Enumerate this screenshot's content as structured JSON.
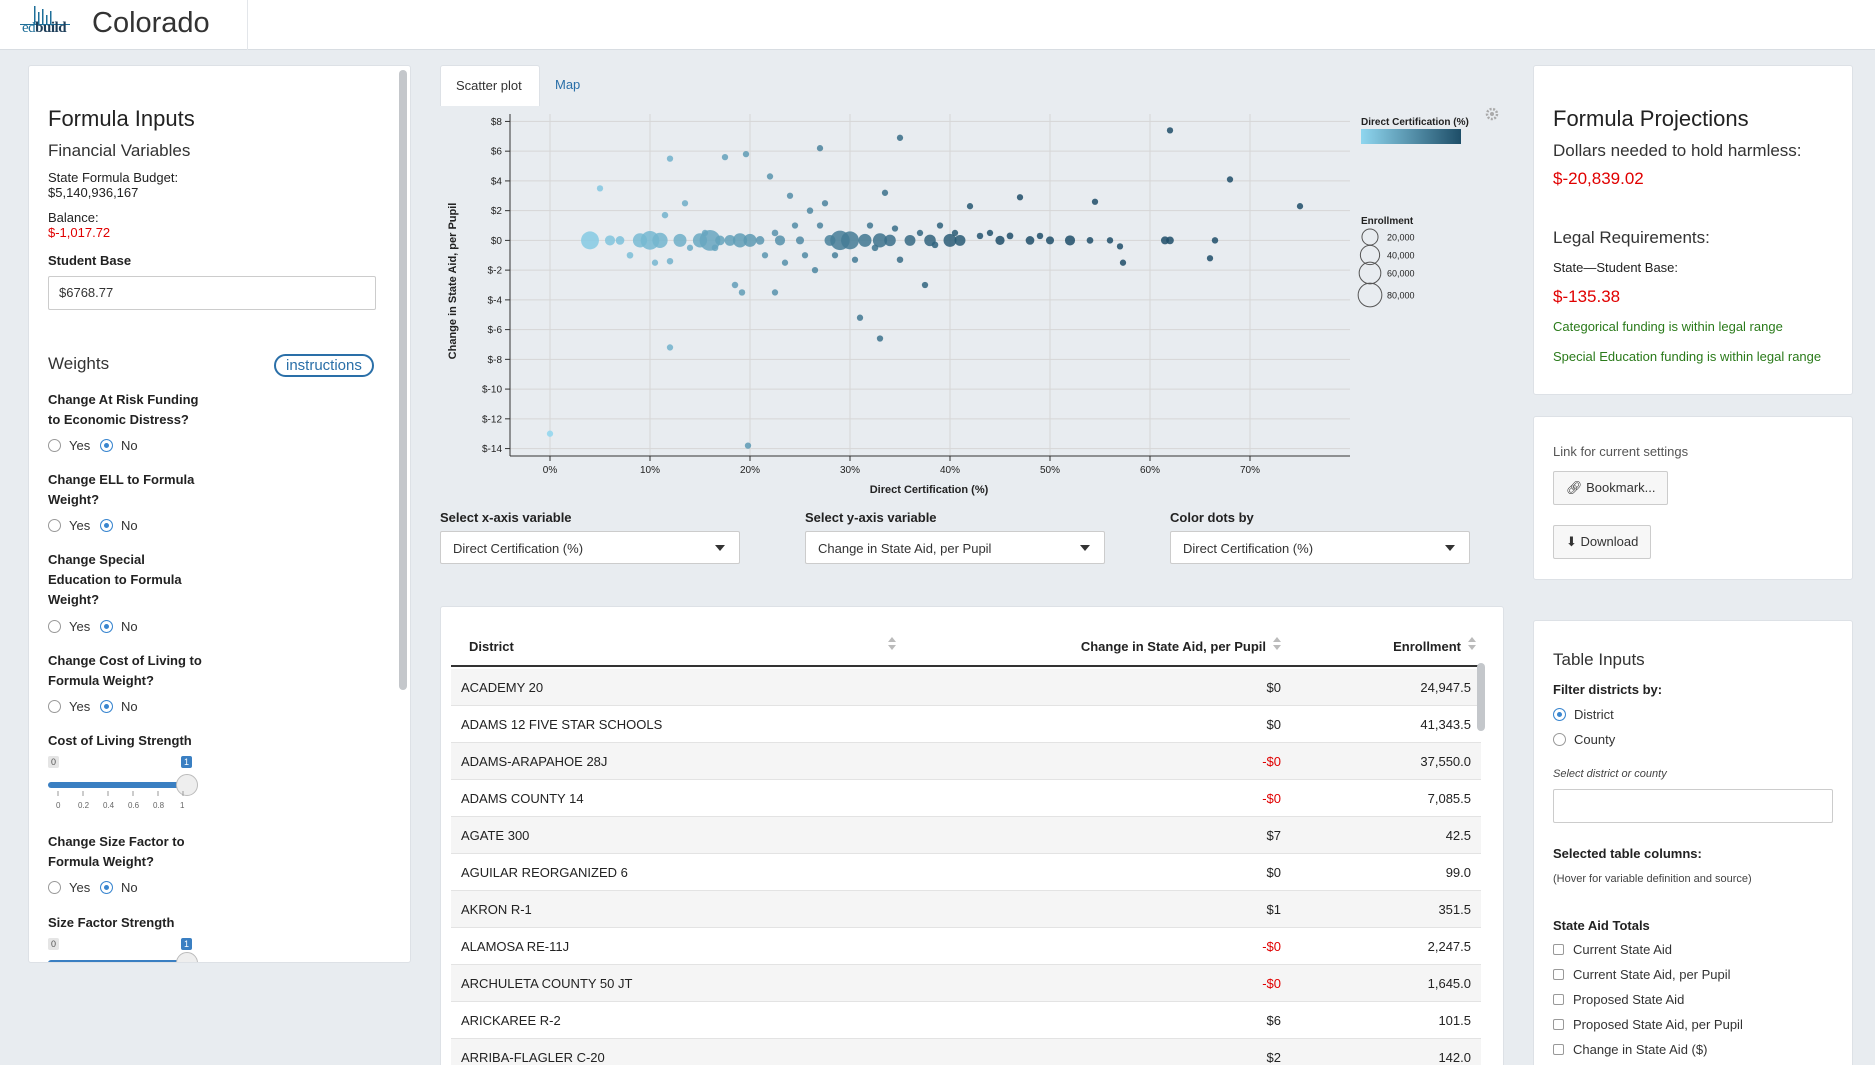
{
  "header": {
    "logo_text_a": "ed",
    "logo_text_b": "build",
    "state": "Colorado"
  },
  "left": {
    "title": "Formula Inputs",
    "financial_title": "Financial Variables",
    "budget_label": "State Formula Budget:",
    "budget_value": "$5,140,936,167",
    "balance_label": "Balance:",
    "balance_value": "$-1,017.72",
    "student_base_label": "Student Base",
    "student_base_value": "$6768.77",
    "weights_title": "Weights",
    "instructions_label": "instructions",
    "yes": "Yes",
    "no": "No",
    "q1a": "Change At Risk Funding",
    "q1b": "to Economic Distress?",
    "q2a": "Change ELL to Formula",
    "q2b": "Weight?",
    "q3a": "Change Special",
    "q3b": "Education to Formula",
    "q3c": "Weight?",
    "q4a": "Change Cost of Living to",
    "q4b": "Formula Weight?",
    "col_strength": "Cost of Living Strength",
    "q5a": "Change Size Factor to",
    "q5b": "Formula Weight?",
    "size_strength": "Size Factor Strength",
    "slider_min": "0",
    "slider_max": "1",
    "slider_ticks": [
      "0",
      "0.2",
      "0.4",
      "0.6",
      "0.8",
      "1"
    ],
    "col_strength_value": 1,
    "size_strength_value": 1
  },
  "tabs": {
    "scatter": "Scatter plot",
    "map": "Map"
  },
  "chart_data": {
    "type": "scatter",
    "xlabel": "Direct Certification (%)",
    "ylabel": "Change in State Aid, per Pupil",
    "xlim": [
      -4,
      80
    ],
    "ylim": [
      -14.5,
      8.5
    ],
    "x_ticks": [
      "0%",
      "10%",
      "20%",
      "30%",
      "40%",
      "50%",
      "60%",
      "70%"
    ],
    "x_tick_values": [
      0,
      10,
      20,
      30,
      40,
      50,
      60,
      70
    ],
    "y_ticks": [
      "$8",
      "$6",
      "$4",
      "$2",
      "$0",
      "$-2",
      "$-4",
      "$-6",
      "$-8",
      "$-10",
      "$-12",
      "$-14"
    ],
    "y_tick_values": [
      8,
      6,
      4,
      2,
      0,
      -2,
      -4,
      -6,
      -8,
      -10,
      -12,
      -14
    ],
    "grid": true,
    "color_legend_title": "Direct Certification (%)",
    "size_legend_title": "Enrollment",
    "size_legend": [
      "20,000",
      "40,000",
      "60,000",
      "80,000"
    ],
    "size_legend_values": [
      20000,
      40000,
      60000,
      80000
    ],
    "color_low": "#8fd6ef",
    "color_high": "#1e4e68",
    "points": [
      [
        0,
        -13,
        300
      ],
      [
        4,
        0,
        40000
      ],
      [
        5,
        3.5,
        300
      ],
      [
        6,
        0,
        6000
      ],
      [
        7,
        0,
        3000
      ],
      [
        8,
        -1,
        500
      ],
      [
        9,
        0,
        20000
      ],
      [
        10,
        0,
        45000
      ],
      [
        10.5,
        -1.5,
        300
      ],
      [
        11,
        0,
        25000
      ],
      [
        11.5,
        1.7,
        400
      ],
      [
        12,
        -1.4,
        400
      ],
      [
        12,
        5.5,
        300
      ],
      [
        12,
        -7.2,
        300
      ],
      [
        13,
        0,
        15000
      ],
      [
        13.5,
        2.5,
        300
      ],
      [
        14,
        -0.5,
        300
      ],
      [
        15,
        0,
        20000
      ],
      [
        15.5,
        0.5,
        300
      ],
      [
        16,
        0,
        60000
      ],
      [
        16.5,
        -0.5,
        500
      ],
      [
        17,
        0,
        5000
      ],
      [
        17.5,
        5.6,
        300
      ],
      [
        18,
        0,
        8000
      ],
      [
        18.5,
        -3,
        400
      ],
      [
        19,
        0,
        20000
      ],
      [
        19.2,
        -3.5,
        400
      ],
      [
        19.6,
        5.8,
        300
      ],
      [
        19.8,
        -13.8,
        300
      ],
      [
        20,
        0,
        15000
      ],
      [
        21,
        0,
        3000
      ],
      [
        21.5,
        -1,
        300
      ],
      [
        22,
        4.3,
        300
      ],
      [
        22.5,
        -3.5,
        300
      ],
      [
        22.5,
        0.5,
        500
      ],
      [
        23,
        0,
        6000
      ],
      [
        23.5,
        -1.5,
        300
      ],
      [
        24,
        3,
        300
      ],
      [
        24.5,
        1,
        300
      ],
      [
        25,
        0,
        2000
      ],
      [
        25.5,
        -1,
        300
      ],
      [
        26,
        2,
        400
      ],
      [
        26.5,
        -2,
        300
      ],
      [
        27,
        6.2,
        300
      ],
      [
        27,
        1,
        300
      ],
      [
        27.5,
        2.5,
        300
      ],
      [
        28,
        0,
        8000
      ],
      [
        28.5,
        -1,
        300
      ],
      [
        29,
        0,
        50000
      ],
      [
        30,
        0,
        40000
      ],
      [
        30.5,
        -1.3,
        300
      ],
      [
        31,
        -5.2,
        300
      ],
      [
        31.5,
        0,
        15000
      ],
      [
        32,
        1,
        300
      ],
      [
        32.5,
        -0.5,
        500
      ],
      [
        33,
        0,
        20000
      ],
      [
        33,
        -6.6,
        300
      ],
      [
        33.5,
        3.2,
        300
      ],
      [
        34,
        0,
        10000
      ],
      [
        34.5,
        0.8,
        300
      ],
      [
        35,
        6.9,
        300
      ],
      [
        35,
        -1.3,
        400
      ],
      [
        36,
        0,
        8000
      ],
      [
        37,
        0.5,
        300
      ],
      [
        37.5,
        -3,
        300
      ],
      [
        38,
        0,
        10000
      ],
      [
        38.5,
        -0.3,
        500
      ],
      [
        39,
        1,
        300
      ],
      [
        40,
        0,
        15000
      ],
      [
        40.5,
        0.5,
        300
      ],
      [
        41,
        0,
        8000
      ],
      [
        42,
        2.3,
        300
      ],
      [
        43,
        0.3,
        400
      ],
      [
        44,
        0.5,
        300
      ],
      [
        45,
        0,
        4000
      ],
      [
        46,
        0.3,
        600
      ],
      [
        47,
        2.9,
        300
      ],
      [
        48,
        0,
        3000
      ],
      [
        49,
        0.3,
        400
      ],
      [
        50,
        0,
        2000
      ],
      [
        52,
        0,
        6000
      ],
      [
        54,
        0,
        600
      ],
      [
        54.5,
        2.6,
        300
      ],
      [
        56,
        0,
        400
      ],
      [
        57,
        -0.4,
        300
      ],
      [
        57.3,
        -1.5,
        300
      ],
      [
        61.5,
        0,
        2000
      ],
      [
        62,
        0,
        1500
      ],
      [
        62,
        7.4,
        300
      ],
      [
        66,
        -1.2,
        300
      ],
      [
        66.5,
        0,
        400
      ],
      [
        68,
        4.1,
        300
      ],
      [
        75,
        2.3,
        300
      ]
    ]
  },
  "selects": {
    "x_label": "Select x-axis variable",
    "x_value": "Direct Certification (%)",
    "y_label": "Select y-axis variable",
    "y_value": "Change in State Aid, per Pupil",
    "c_label": "Color dots by",
    "c_value": "Direct Certification (%)"
  },
  "table": {
    "headers": [
      "District",
      "Change in State Aid, per Pupil",
      "Enrollment"
    ],
    "rows": [
      [
        "ACADEMY 20",
        "$0",
        "24,947.5",
        false
      ],
      [
        "ADAMS 12 FIVE STAR SCHOOLS",
        "$0",
        "41,343.5",
        false
      ],
      [
        "ADAMS-ARAPAHOE 28J",
        "-$0",
        "37,550.0",
        true
      ],
      [
        "ADAMS COUNTY 14",
        "-$0",
        "7,085.5",
        true
      ],
      [
        "AGATE 300",
        "$7",
        "42.5",
        false
      ],
      [
        "AGUILAR REORGANIZED 6",
        "$0",
        "99.0",
        false
      ],
      [
        "AKRON R-1",
        "$1",
        "351.5",
        false
      ],
      [
        "ALAMOSA RE-11J",
        "-$0",
        "2,247.5",
        true
      ],
      [
        "ARCHULETA COUNTY 50 JT",
        "-$0",
        "1,645.0",
        true
      ],
      [
        "ARICKAREE R-2",
        "$6",
        "101.5",
        false
      ],
      [
        "ARRIBA-FLAGLER C-20",
        "$2",
        "142.0",
        false
      ]
    ]
  },
  "right": {
    "proj_title": "Formula Projections",
    "harmless_label": "Dollars needed to hold harmless:",
    "harmless_value": "$-20,839.02",
    "legal_title": "Legal Requirements:",
    "student_base_label": "State—Student Base:",
    "student_base_value": "$-135.38",
    "categorical_msg": "Categorical funding is within legal range",
    "sped_msg": "Special Education funding is within legal range",
    "link_label": "Link for current settings",
    "bookmark_label": "Bookmark...",
    "download_label": "Download",
    "table_inputs_title": "Table Inputs",
    "filter_label": "Filter districts by:",
    "filter_district": "District",
    "filter_county": "County",
    "select_dc_label": "Select district or county",
    "selected_cols_label": "Selected table columns:",
    "hover_hint": "(Hover for variable definition and source)",
    "state_aid_totals": "State Aid Totals",
    "cols": [
      "Current State Aid",
      "Current State Aid, per Pupil",
      "Proposed State Aid",
      "Proposed State Aid, per Pupil",
      "Change in State Aid ($)"
    ]
  }
}
